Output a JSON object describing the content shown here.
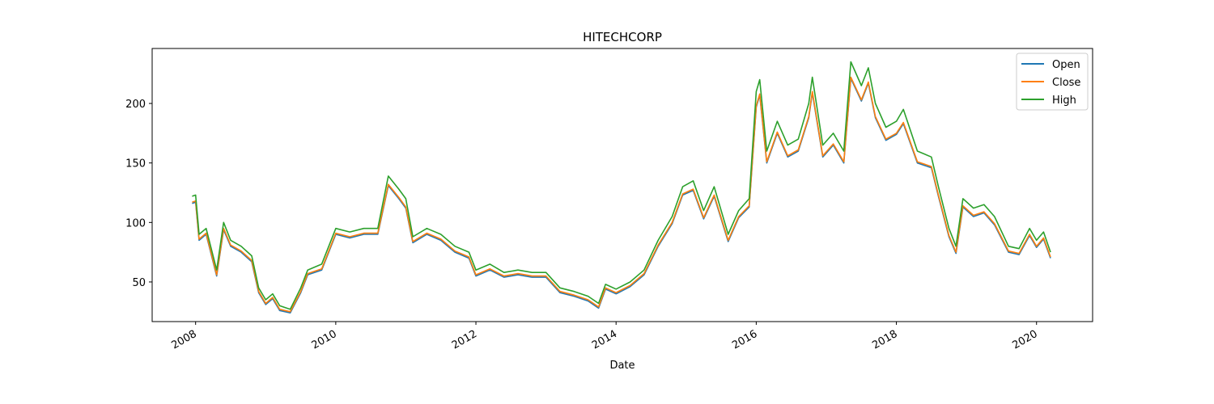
{
  "chart_data": {
    "type": "line",
    "title": "HITECHCORP",
    "xlabel": "Date",
    "x": [
      2007.95,
      2008.0,
      2008.05,
      2008.15,
      2008.3,
      2008.4,
      2008.5,
      2008.65,
      2008.8,
      2008.9,
      2009.0,
      2009.1,
      2009.2,
      2009.35,
      2009.5,
      2009.6,
      2009.8,
      2010.0,
      2010.2,
      2010.4,
      2010.6,
      2010.75,
      2010.9,
      2011.0,
      2011.1,
      2011.3,
      2011.5,
      2011.7,
      2011.9,
      2012.0,
      2012.2,
      2012.4,
      2012.6,
      2012.8,
      2013.0,
      2013.2,
      2013.4,
      2013.6,
      2013.75,
      2013.85,
      2014.0,
      2014.2,
      2014.4,
      2014.6,
      2014.8,
      2014.95,
      2015.1,
      2015.25,
      2015.4,
      2015.6,
      2015.75,
      2015.9,
      2016.0,
      2016.05,
      2016.15,
      2016.3,
      2016.45,
      2016.6,
      2016.75,
      2016.8,
      2016.95,
      2017.1,
      2017.25,
      2017.35,
      2017.5,
      2017.6,
      2017.7,
      2017.85,
      2018.0,
      2018.1,
      2018.3,
      2018.5,
      2018.6,
      2018.75,
      2018.85,
      2018.95,
      2019.1,
      2019.25,
      2019.4,
      2019.6,
      2019.75,
      2019.9,
      2020.0,
      2020.1,
      2020.2
    ],
    "series": [
      {
        "name": "Open",
        "color": "#1f77b4",
        "values": [
          116,
          117,
          85,
          90,
          55,
          94,
          80,
          75,
          67,
          41,
          31,
          36,
          26,
          24,
          41,
          56,
          60,
          90,
          87,
          90,
          90,
          131,
          120,
          112,
          83,
          90,
          85,
          75,
          70,
          55,
          60,
          54,
          56,
          54,
          54,
          41,
          38,
          34,
          28,
          44,
          40,
          46,
          56,
          80,
          99,
          123,
          127,
          103,
          122,
          84,
          104,
          113,
          197,
          207,
          150,
          175,
          155,
          160,
          188,
          209,
          155,
          165,
          150,
          221,
          202,
          217,
          188,
          169,
          174,
          183,
          150,
          146,
          122,
          88,
          74,
          113,
          105,
          108,
          98,
          75,
          73,
          89,
          79,
          86,
          70
        ]
      },
      {
        "name": "Close",
        "color": "#ff7f0e",
        "values": [
          117,
          118,
          86,
          91,
          56,
          95,
          81,
          76,
          68,
          42,
          32,
          37,
          27,
          25,
          42,
          57,
          61,
          91,
          88,
          91,
          91,
          132,
          121,
          113,
          84,
          91,
          86,
          76,
          71,
          56,
          61,
          55,
          57,
          55,
          55,
          42,
          39,
          35,
          29,
          45,
          41,
          47,
          57,
          81,
          100,
          124,
          128,
          104,
          123,
          85,
          105,
          114,
          198,
          208,
          151,
          176,
          156,
          161,
          189,
          210,
          156,
          166,
          151,
          222,
          203,
          218,
          189,
          170,
          175,
          184,
          151,
          147,
          123,
          89,
          75,
          114,
          106,
          109,
          99,
          76,
          74,
          90,
          80,
          87,
          71
        ]
      },
      {
        "name": "High",
        "color": "#2ca02c",
        "values": [
          122,
          123,
          90,
          95,
          60,
          100,
          85,
          80,
          72,
          45,
          35,
          40,
          30,
          27,
          45,
          60,
          65,
          95,
          92,
          95,
          95,
          139,
          128,
          120,
          88,
          95,
          90,
          80,
          75,
          60,
          65,
          58,
          60,
          58,
          58,
          45,
          42,
          38,
          32,
          48,
          44,
          50,
          60,
          85,
          105,
          130,
          135,
          110,
          130,
          90,
          110,
          120,
          210,
          220,
          160,
          185,
          165,
          170,
          200,
          222,
          165,
          175,
          160,
          235,
          215,
          230,
          200,
          180,
          185,
          195,
          160,
          155,
          130,
          95,
          80,
          120,
          112,
          115,
          105,
          80,
          78,
          95,
          85,
          92,
          75
        ]
      }
    ],
    "xlim": [
      2007.38,
      2020.8
    ],
    "xticks": [
      2008,
      2010,
      2012,
      2014,
      2016,
      2018,
      2020
    ],
    "ylim": [
      16.7,
      246.2
    ],
    "yticks": [
      50,
      100,
      150,
      200
    ],
    "grid": false,
    "legend": "upper right"
  }
}
